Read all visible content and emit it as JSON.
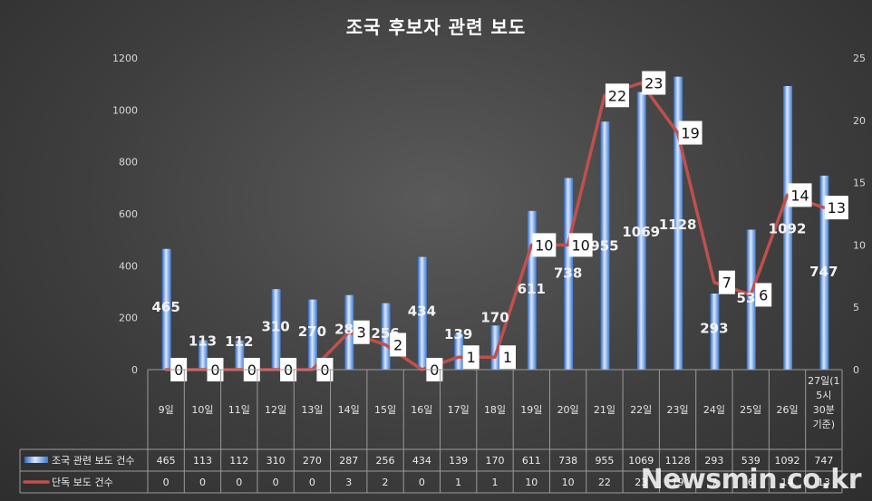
{
  "chart_data": {
    "title": "조국 후보자 관련 보도",
    "categories": [
      "9일",
      "10일",
      "11일",
      "12일",
      "13일",
      "14일",
      "15일",
      "16일",
      "17일",
      "18일",
      "19일",
      "20일",
      "21일",
      "22일",
      "23일",
      "24일",
      "25일",
      "26일",
      "27일(15시 30분 기준)"
    ],
    "category_lines": [
      [
        "9일"
      ],
      [
        "10일"
      ],
      [
        "11일"
      ],
      [
        "12일"
      ],
      [
        "13일"
      ],
      [
        "14일"
      ],
      [
        "15일"
      ],
      [
        "16일"
      ],
      [
        "17일"
      ],
      [
        "18일"
      ],
      [
        "19일"
      ],
      [
        "20일"
      ],
      [
        "21일"
      ],
      [
        "22일"
      ],
      [
        "23일"
      ],
      [
        "24일"
      ],
      [
        "25일"
      ],
      [
        "26일"
      ],
      [
        "27일(1",
        "5시",
        "30분",
        "기준)"
      ]
    ],
    "series": [
      {
        "name": "조국 관련 보도 건수",
        "type": "bar",
        "axis": "left",
        "color": "#5b8fd6",
        "values": [
          465,
          113,
          112,
          310,
          270,
          287,
          256,
          434,
          139,
          170,
          611,
          738,
          955,
          1069,
          1128,
          293,
          539,
          1092,
          747
        ]
      },
      {
        "name": "단독 보도 건수",
        "type": "line",
        "axis": "right",
        "color": "#c0504d",
        "values": [
          0,
          0,
          0,
          0,
          0,
          3,
          2,
          0,
          1,
          1,
          10,
          10,
          22,
          23,
          19,
          7,
          6,
          14,
          13
        ]
      }
    ],
    "y_left": {
      "min": 0,
      "max": 1200,
      "ticks": [
        0,
        200,
        400,
        600,
        800,
        1000,
        1200
      ]
    },
    "y_right": {
      "min": 0,
      "max": 25,
      "ticks": [
        0,
        5,
        10,
        15,
        20,
        25
      ]
    },
    "data_table": true,
    "legend_placement": "data-table"
  },
  "watermark": "Newsmin.co.kr"
}
